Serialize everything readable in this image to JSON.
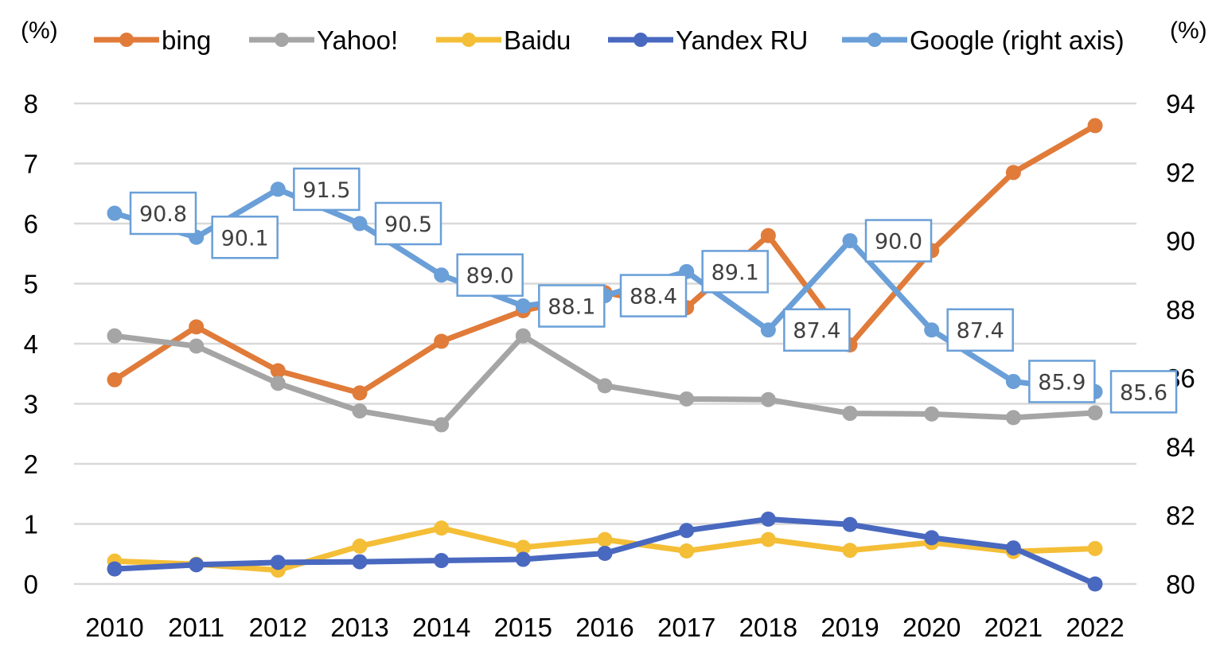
{
  "chart_data": {
    "type": "line",
    "categories": [
      "2010",
      "2011",
      "2012",
      "2013",
      "2014",
      "2015",
      "2016",
      "2017",
      "2018",
      "2019",
      "2020",
      "2021",
      "2022"
    ],
    "left_axis": {
      "unit": "(%)",
      "ylim": [
        0,
        8
      ],
      "ticks": [
        "0",
        "1",
        "2",
        "3",
        "4",
        "5",
        "6",
        "7",
        "8"
      ]
    },
    "right_axis": {
      "unit": "(%)",
      "ylim": [
        80,
        94
      ],
      "ticks": [
        "80",
        "82",
        "84",
        "86",
        "88",
        "90",
        "92",
        "94"
      ]
    },
    "grid": true,
    "legend_position": "top",
    "series": [
      {
        "name": "bing",
        "axis": "left",
        "color": "#E07B39",
        "values": [
          3.4,
          4.28,
          3.55,
          3.18,
          4.04,
          4.55,
          4.85,
          4.6,
          5.8,
          3.98,
          5.55,
          6.85,
          7.63
        ]
      },
      {
        "name": "Yahoo!",
        "axis": "left",
        "color": "#A5A5A5",
        "values": [
          4.13,
          3.96,
          3.34,
          2.88,
          2.65,
          4.13,
          3.3,
          3.08,
          3.07,
          2.84,
          2.83,
          2.77,
          2.85
        ]
      },
      {
        "name": "Baidu",
        "axis": "left",
        "color": "#F4BE37",
        "values": [
          0.38,
          0.33,
          0.23,
          0.63,
          0.93,
          0.61,
          0.74,
          0.55,
          0.74,
          0.56,
          0.69,
          0.54,
          0.59
        ]
      },
      {
        "name": "Yandex RU",
        "axis": "left",
        "color": "#4968BF",
        "values": [
          0.25,
          0.32,
          0.36,
          0.37,
          0.39,
          0.41,
          0.51,
          0.89,
          1.08,
          0.99,
          0.77,
          0.6,
          0.0
        ]
      },
      {
        "name": "Google (right axis)",
        "axis": "right",
        "color": "#6A9FD8",
        "values": [
          90.8,
          90.1,
          91.5,
          90.5,
          89.0,
          88.1,
          88.4,
          89.1,
          87.4,
          90.0,
          87.4,
          85.9,
          85.6
        ],
        "data_labels": [
          "90.8",
          "90.1",
          "91.5",
          "90.5",
          "89.0",
          "88.1",
          "88.4",
          "89.1",
          "87.4",
          "90.0",
          "87.4",
          "85.9",
          "85.6"
        ]
      }
    ]
  }
}
